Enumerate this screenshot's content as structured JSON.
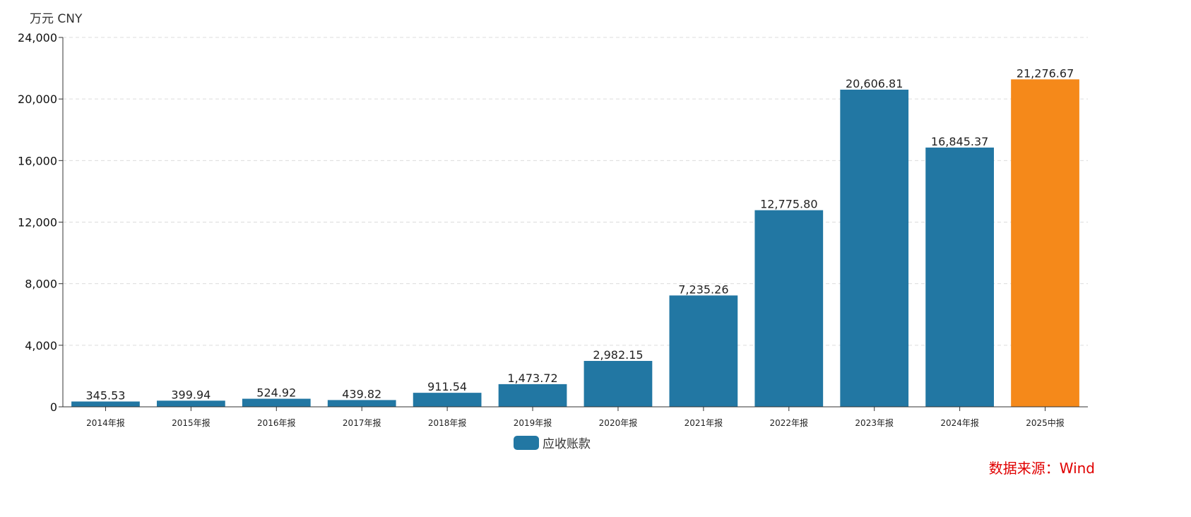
{
  "chart_data": {
    "type": "bar",
    "unit_label": "万元  CNY",
    "categories": [
      "2014年报",
      "2015年报",
      "2016年报",
      "2017年报",
      "2018年报",
      "2019年报",
      "2020年报",
      "2021年报",
      "2022年报",
      "2023年报",
      "2024年报",
      "2025中报"
    ],
    "values": [
      345.53,
      399.94,
      524.92,
      439.82,
      911.54,
      1473.72,
      2982.15,
      7235.26,
      12775.8,
      20606.81,
      16845.37,
      21276.67
    ],
    "value_labels": [
      "345.53",
      "399.94",
      "524.92",
      "439.82",
      "911.54",
      "1,473.72",
      "2,982.15",
      "7,235.26",
      "12,775.80",
      "20,606.81",
      "16,845.37",
      "21,276.67"
    ],
    "series_name": "应收账款",
    "ylim": [
      0,
      24000
    ],
    "yticks": [
      0,
      4000,
      8000,
      12000,
      16000,
      20000,
      24000
    ],
    "ytick_labels": [
      "0",
      "4,000",
      "8,000",
      "12,000",
      "16,000",
      "20,000",
      "24,000"
    ],
    "grid": true,
    "legend_position": "bottom-center",
    "colors": {
      "default": "#2277a3",
      "highlight": "#f5891a"
    },
    "highlight_index": 11
  },
  "source": "数据来源：Wind"
}
